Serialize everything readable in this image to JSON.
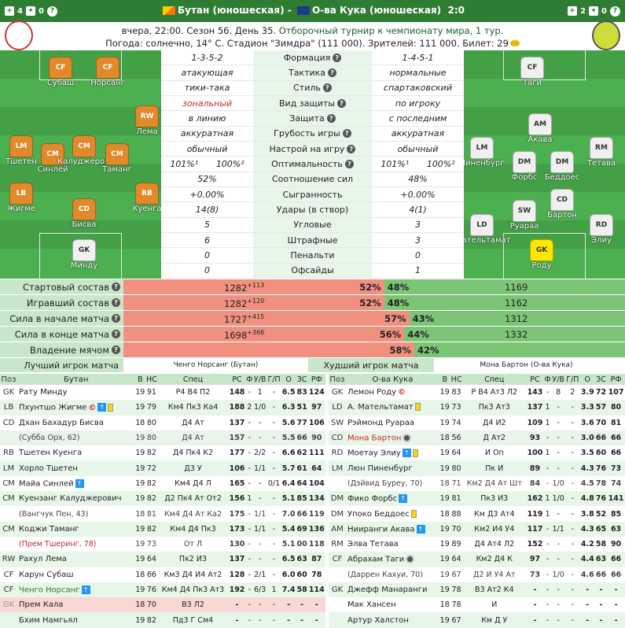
{
  "topbar": {
    "left_a": "4",
    "left_b": "0",
    "right_a": "2",
    "right_b": "0",
    "home": "Бутан (юношеская)",
    "sep": "-",
    "away": "О-ва Кука (юношеская)",
    "score": "2:0"
  },
  "info": {
    "line1a": "вчера, 22:00. Сезон 56. День 35.",
    "line1b": "Отборочный турнир к чемпионату мира, 1 тур.",
    "line2": "Погода: солнечно, 14° С. Стадион \"Зимдра\" (111 000). Зрителей: 111 000. Билет: 29"
  },
  "stats": [
    {
      "h": "1-3-5-2",
      "l": "Формация",
      "a": "1-4-5-1"
    },
    {
      "h": "атакующая",
      "l": "Тактика",
      "a": "нормальные"
    },
    {
      "h": "тики-така",
      "l": "Стиль",
      "a": "спартаковский"
    },
    {
      "h": "зональный",
      "l": "Вид защиты",
      "a": "по игроку"
    },
    {
      "h": "в линию",
      "l": "Защита",
      "a": "с последним"
    },
    {
      "h": "аккуратная",
      "l": "Грубость игры",
      "a": "аккуратная"
    },
    {
      "h": "обычный",
      "l": "Настрой на игру",
      "a": "обычный"
    },
    {
      "h1": "101%¹",
      "h2": "100%²",
      "l": "Оптимальность",
      "a1": "101%¹",
      "a2": "100%²"
    },
    {
      "h": "52%",
      "l": "Соотношение сил",
      "a": "48%"
    },
    {
      "h": "+0.00%",
      "l": "Сыгранность",
      "a": "+0.00%"
    },
    {
      "h": "14(8)",
      "l": "Удары (в створ)",
      "a": "4(1)"
    },
    {
      "h": "5",
      "l": "Угловые",
      "a": "3"
    },
    {
      "h": "6",
      "l": "Штрафные",
      "a": "3"
    },
    {
      "h": "0",
      "l": "Пенальти",
      "a": "0"
    },
    {
      "h": "0",
      "l": "Офсайды",
      "a": "1"
    }
  ],
  "bars": [
    {
      "label": "Стартовый состав",
      "hv": "1282",
      "hs": "+113",
      "hp": "52%",
      "ap": "48%",
      "av": "1169",
      "pct": 52
    },
    {
      "label": "Игравший состав",
      "hv": "1282",
      "hs": "+120",
      "hp": "52%",
      "ap": "48%",
      "av": "1162",
      "pct": 52
    },
    {
      "label": "Сила в начале матча",
      "hv": "1727",
      "hs": "+415",
      "hp": "57%",
      "ap": "43%",
      "av": "1312",
      "pct": 57
    },
    {
      "label": "Сила в конце матча",
      "hv": "1698",
      "hs": "+366",
      "hp": "56%",
      "ap": "44%",
      "av": "1332",
      "pct": 56
    },
    {
      "label": "Владение мячом",
      "hv": "",
      "hs": "",
      "hp": "58%",
      "ap": "42%",
      "av": "",
      "pct": 58
    }
  ],
  "best": {
    "label": "Лучший игрок матча",
    "home": "Ченго Норсанг (Бутан)",
    "label2": "Худший игрок матча",
    "away": "Мона Бартон (О-ва Кука)"
  },
  "pitch_home": [
    {
      "p": "CF",
      "n": "Субаш"
    },
    {
      "p": "CF",
      "n": "Норсанг"
    },
    {
      "p": "RW",
      "n": "Лема"
    },
    {
      "p": "LM",
      "n": "Тшетен"
    },
    {
      "p": "CM",
      "n": "Синлей"
    },
    {
      "p": "CM",
      "n": "Калуджерови"
    },
    {
      "p": "CM",
      "n": "Таманг"
    },
    {
      "p": "LB",
      "n": "Жигме"
    },
    {
      "p": "CD",
      "n": "Бисва"
    },
    {
      "p": "RB",
      "n": "Куенга"
    },
    {
      "p": "GK",
      "n": "Минду"
    }
  ],
  "pitch_away": [
    {
      "p": "CF",
      "n": "Таги"
    },
    {
      "p": "AM",
      "n": "Акава"
    },
    {
      "p": "LM",
      "n": "Пиненбург"
    },
    {
      "p": "DM",
      "n": "Форбс"
    },
    {
      "p": "DM",
      "n": "Беддоес"
    },
    {
      "p": "RM",
      "n": "Тетава"
    },
    {
      "p": "SW",
      "n": "Руараа"
    },
    {
      "p": "CD",
      "n": "Бартон"
    },
    {
      "p": "LD",
      "n": "Мательтамат"
    },
    {
      "p": "RD",
      "n": "Элиу"
    },
    {
      "p": "GK",
      "n": "Роду"
    }
  ],
  "table_head": {
    "pos": "Поз",
    "home": "Бутан",
    "away": "О-ва Кука",
    "cols": [
      "В",
      "НС",
      "Спец",
      "РС",
      "Ф",
      "У/В",
      "Г/П",
      "О",
      "ЗС",
      "РФ"
    ]
  },
  "home_rows": [
    {
      "pos": "GK",
      "name": "Рату Минду",
      "c": [
        "19",
        "91",
        "Р4 В4 П2",
        "148",
        "-",
        "1",
        "-",
        "6.5",
        "83",
        "124"
      ]
    },
    {
      "pos": "LB",
      "name": "Пхунтшо Жигме",
      "c": [
        "19",
        "79",
        "Км4 Пк3 Ка4",
        "188",
        "2",
        "1/0",
        "-",
        "6.3",
        "51",
        "97"
      ]
    },
    {
      "pos": "CD",
      "name": "Дхан Бахадур Бисва",
      "c": [
        "18",
        "80",
        "Д4 Ат",
        "137",
        "-",
        "-",
        "-",
        "5.6",
        "77",
        "106"
      ]
    },
    {
      "pos": "",
      "name": "(Субба Орх, 62)",
      "c": [
        "19",
        "80",
        "Д4 Ат",
        "157",
        "-",
        "-",
        "-",
        "5.5",
        "66",
        "90"
      ],
      "sub": true
    },
    {
      "pos": "RB",
      "name": "Тшетен Куенга",
      "c": [
        "19",
        "82",
        "Д4 Пк4 К2",
        "177",
        "-",
        "2/2",
        "-",
        "6.6",
        "62",
        "111"
      ]
    },
    {
      "pos": "LM",
      "name": "Хорло Тшетен",
      "c": [
        "19",
        "72",
        "Д3 У",
        "106",
        "-",
        "1/1",
        "-",
        "5.7",
        "61",
        "64"
      ]
    },
    {
      "pos": "CM",
      "name": "Майа Синлей",
      "c": [
        "19",
        "82",
        "Км4 Д4 Л",
        "165",
        "-",
        "-",
        "0/1",
        "6.4",
        "64",
        "104"
      ]
    },
    {
      "pos": "CM",
      "name": "Куензанг Калуджерович",
      "c": [
        "19",
        "82",
        "Д2 Пк4 Ат От2",
        "156",
        "1",
        "-",
        "-",
        "5.1",
        "85",
        "134"
      ]
    },
    {
      "pos": "",
      "name": "(Вангчук Пен, 43)",
      "c": [
        "18",
        "81",
        "Км4 Д4 Ат Ка2",
        "175",
        "-",
        "1/1",
        "-",
        "7.0",
        "66",
        "119"
      ],
      "sub": true
    },
    {
      "pos": "CM",
      "name": "Коджи Таманг",
      "c": [
        "19",
        "82",
        "Км4 Д4 Пк3",
        "173",
        "-",
        "1/1",
        "-",
        "5.4",
        "69",
        "136"
      ]
    },
    {
      "pos": "",
      "name": "(Прем Тшеринг, 78)",
      "c": [
        "19",
        "73",
        "От Л",
        "130",
        "-",
        "-",
        "-",
        "5.1",
        "00",
        "118"
      ],
      "sub": true,
      "red": true
    },
    {
      "pos": "RW",
      "name": "Рахул Лема",
      "c": [
        "19",
        "64",
        "Пк2 И3",
        "137",
        "-",
        "-",
        "-",
        "6.5",
        "63",
        "87"
      ]
    },
    {
      "pos": "CF",
      "name": "Карун Субаш",
      "c": [
        "18",
        "66",
        "Км3 Д4 И4 Ат2",
        "128",
        "-",
        "2/1",
        "-",
        "6.0",
        "60",
        "78"
      ]
    },
    {
      "pos": "CF",
      "name": "Ченго Норсанг",
      "c": [
        "19",
        "76",
        "Км4 Д4 Пк3 Ат3",
        "192",
        "-",
        "6/3",
        "1",
        "7.4",
        "58",
        "114"
      ]
    },
    {
      "pos": "GK",
      "name": "Прем Кала",
      "c": [
        "18",
        "70",
        "В3 Л2",
        "-",
        "-",
        "-",
        "-",
        "-",
        "-",
        "-"
      ],
      "pink": true
    },
    {
      "pos": "",
      "name": "Бхим Намгьял",
      "c": [
        "19",
        "82",
        "Пд3 Г См4",
        "-",
        "-",
        "-",
        "-",
        "-",
        "-",
        "-"
      ]
    }
  ],
  "away_rows": [
    {
      "pos": "GK",
      "name": "Лемон Роду",
      "c": [
        "19",
        "83",
        "Р В4 Ат3 Л2",
        "143",
        "-",
        "8",
        "2",
        "3.9",
        "72",
        "107"
      ]
    },
    {
      "pos": "LD",
      "name": "А. Мательтамат",
      "c": [
        "19",
        "73",
        "Пк3 Ат3",
        "137",
        "1",
        "-",
        "-",
        "3.3",
        "57",
        "80"
      ]
    },
    {
      "pos": "SW",
      "name": "Рэймонд Руараа",
      "c": [
        "19",
        "74",
        "Д4 И2",
        "109",
        "1",
        "-",
        "-",
        "3.6",
        "70",
        "81"
      ]
    },
    {
      "pos": "CD",
      "name": "Мона Бартон",
      "c": [
        "18",
        "56",
        "Д Ат2",
        "93",
        "-",
        "-",
        "-",
        "3.0",
        "66",
        "66"
      ]
    },
    {
      "pos": "RD",
      "name": "Моетау Элиу",
      "c": [
        "19",
        "64",
        "И Оп",
        "100",
        "1",
        "-",
        "-",
        "3.5",
        "60",
        "66"
      ]
    },
    {
      "pos": "LM",
      "name": "Люн Пиненбург",
      "c": [
        "19",
        "80",
        "Пк И",
        "89",
        "-",
        "-",
        "-",
        "4.3",
        "76",
        "73"
      ]
    },
    {
      "pos": "",
      "name": "(Дэйвид Буреу, 70)",
      "c": [
        "18",
        "71",
        "Км2 Д4 Ат Шт",
        "84",
        "-",
        "1/0",
        "-",
        "4.5",
        "78",
        "74"
      ],
      "sub": true
    },
    {
      "pos": "DM",
      "name": "Фико Форбс",
      "c": [
        "19",
        "81",
        "Пк3 И3",
        "162",
        "1",
        "1/0",
        "-",
        "4.8",
        "76",
        "141"
      ]
    },
    {
      "pos": "DM",
      "name": "Упоко Беддоес",
      "c": [
        "18",
        "88",
        "Км Д3 Ат4",
        "119",
        "1",
        "-",
        "-",
        "3.8",
        "52",
        "85"
      ]
    },
    {
      "pos": "AM",
      "name": "Нииранги Акава",
      "c": [
        "19",
        "70",
        "Км2 И4 У4",
        "117",
        "-",
        "1/1",
        "-",
        "4.3",
        "65",
        "63"
      ]
    },
    {
      "pos": "RM",
      "name": "Элва Тетава",
      "c": [
        "19",
        "89",
        "Д4 Ат4 Л2",
        "152",
        "-",
        "-",
        "-",
        "4.2",
        "58",
        "90"
      ]
    },
    {
      "pos": "CF",
      "name": "Абрахам Таги",
      "c": [
        "19",
        "64",
        "Км2 Д4 К",
        "97",
        "-",
        "-",
        "-",
        "4.4",
        "63",
        "66"
      ]
    },
    {
      "pos": "",
      "name": "(Даррен Кахуи, 70)",
      "c": [
        "19",
        "67",
        "Д2 И У4 Ат",
        "73",
        "-",
        "1/0",
        "-",
        "4.6",
        "66",
        "66"
      ],
      "sub": true
    },
    {
      "pos": "GK",
      "name": "Джефф Манаранги",
      "c": [
        "19",
        "78",
        "В3 Ат2 К4",
        "-",
        "-",
        "-",
        "-",
        "-",
        "-",
        "-"
      ]
    },
    {
      "pos": "",
      "name": "Мак Хансен",
      "c": [
        "18",
        "78",
        "И",
        "-",
        "-",
        "-",
        "-",
        "-",
        "-",
        "-"
      ]
    },
    {
      "pos": "",
      "name": "Артур Халстон",
      "c": [
        "19",
        "67",
        "Км Д У",
        "-",
        "-",
        "-",
        "-",
        "-",
        "-",
        "-"
      ]
    }
  ]
}
